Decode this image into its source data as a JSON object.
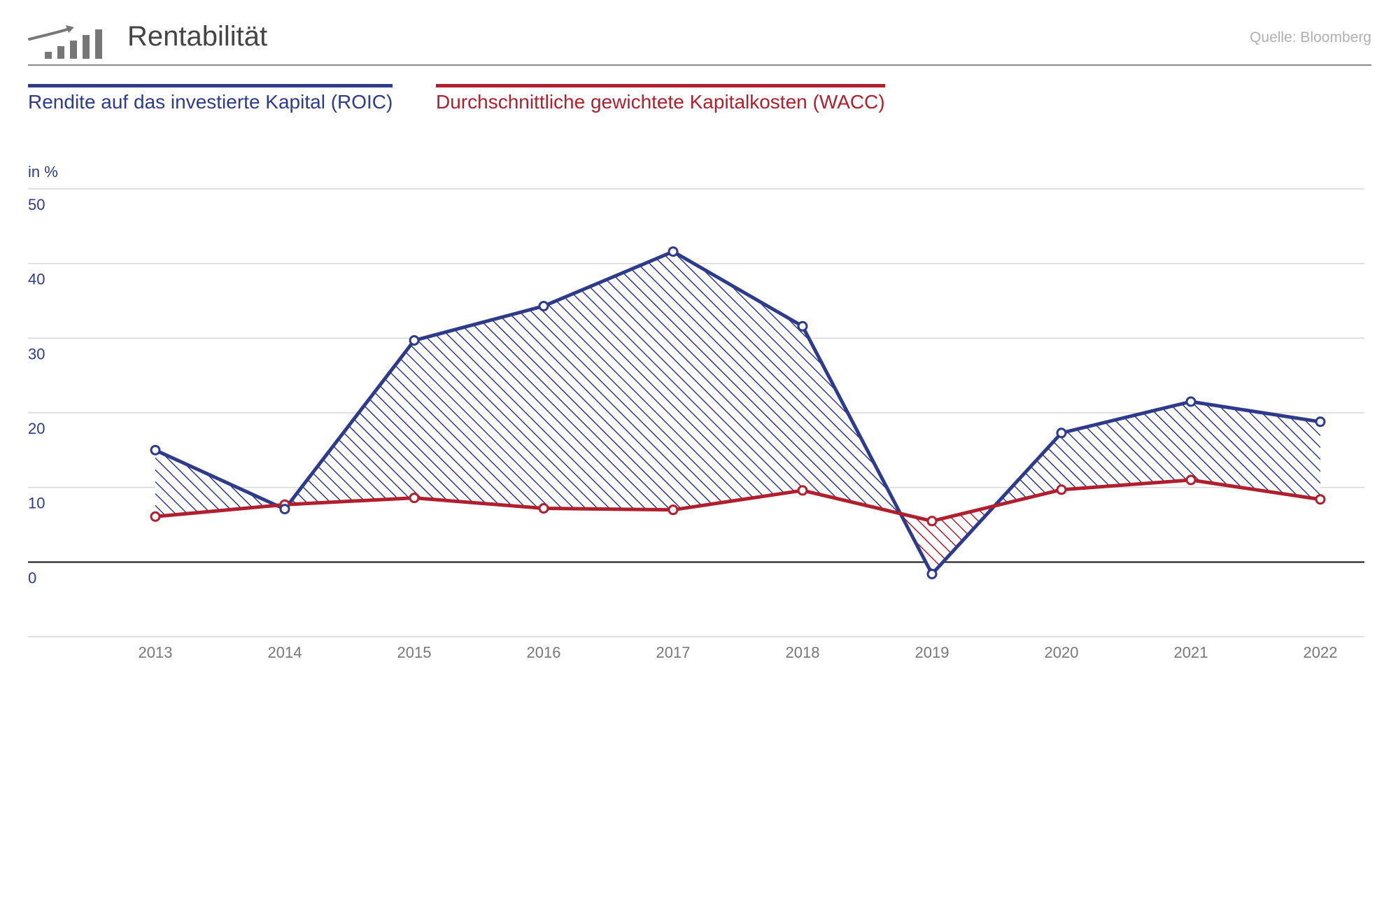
{
  "header": {
    "title": "Rentabilität",
    "source": "Quelle: Bloomberg",
    "logo_icon": "rising-bar-chart-icon"
  },
  "legend": {
    "roic": "Rendite auf das investierte Kapital (ROIC)",
    "wacc": "Durchschnittliche gewichtete Kapitalkosten (WACC)"
  },
  "colors": {
    "roic": "#2e3b8a",
    "wacc": "#b01f2e",
    "grid": "#d6d6d6",
    "zero_line": "#111111",
    "tick_y": "#2e3b8a",
    "tick_x": "#777777"
  },
  "chart_data": {
    "type": "line",
    "ylabel": "in %",
    "ylim": [
      -10,
      50
    ],
    "yticks": [
      0,
      10,
      20,
      30,
      40,
      50
    ],
    "grid": true,
    "x": [
      "2013",
      "2014",
      "2015",
      "2016",
      "2017",
      "2018",
      "2019",
      "2020",
      "2021",
      "2022"
    ],
    "series": [
      {
        "name": "Rendite auf das investierte Kapital (ROIC)",
        "values": [
          15.0,
          7.1,
          29.7,
          34.3,
          41.6,
          31.6,
          -1.6,
          17.3,
          21.5,
          18.8
        ]
      },
      {
        "name": "Durchschnittliche gewichtete Kapitalkosten (WACC)",
        "values": [
          6.1,
          7.7,
          8.6,
          7.2,
          7.0,
          9.6,
          5.5,
          9.7,
          11.0,
          8.4
        ]
      }
    ],
    "fill": "hatched area between series, colored by the higher series"
  }
}
